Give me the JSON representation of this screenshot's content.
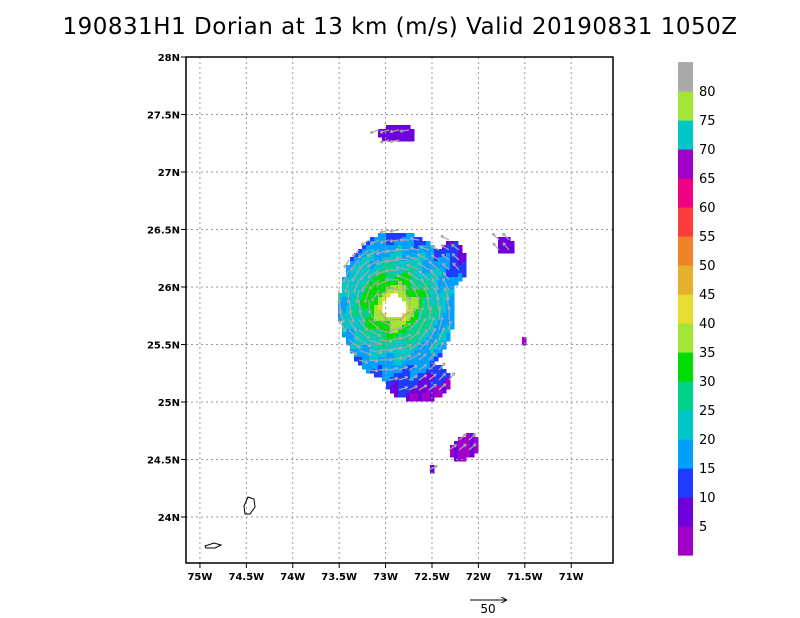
{
  "title": "190831H1 Dorian at 13 km (m/s) Valid 20190831  1050Z",
  "map": {
    "lon_range": [
      -75.15,
      -70.55
    ],
    "lat_range": [
      23.6,
      28.0
    ],
    "lon_ticks": [
      {
        "value": -75.0,
        "label": "75W"
      },
      {
        "value": -74.5,
        "label": "74.5W"
      },
      {
        "value": -74.0,
        "label": "74W"
      },
      {
        "value": -73.5,
        "label": "73.5W"
      },
      {
        "value": -73.0,
        "label": "73W"
      },
      {
        "value": -72.5,
        "label": "72.5W"
      },
      {
        "value": -72.0,
        "label": "72W"
      },
      {
        "value": -71.5,
        "label": "71.5W"
      },
      {
        "value": -71.0,
        "label": "71W"
      }
    ],
    "lat_ticks": [
      {
        "value": 28.0,
        "label": "28N"
      },
      {
        "value": 27.5,
        "label": "27.5N"
      },
      {
        "value": 27.0,
        "label": "27N"
      },
      {
        "value": 26.5,
        "label": "26.5N"
      },
      {
        "value": 26.0,
        "label": "26N"
      },
      {
        "value": 25.5,
        "label": "25.5N"
      },
      {
        "value": 25.0,
        "label": "25N"
      },
      {
        "value": 24.5,
        "label": "24.5N"
      },
      {
        "value": 24.0,
        "label": "24N"
      }
    ],
    "grid": "dotted",
    "storm_center": {
      "lon": -72.93,
      "lat": 25.85
    }
  },
  "colorbar": {
    "levels": [
      "5",
      "10",
      "15",
      "20",
      "25",
      "30",
      "35",
      "40",
      "45",
      "50",
      "55",
      "60",
      "65",
      "70",
      "75",
      "80"
    ],
    "colors": [
      "#a000c8",
      "#6e00dc",
      "#1e3cff",
      "#00a0ff",
      "#00c8c8",
      "#00d28c",
      "#00dc00",
      "#a0e632",
      "#e6dc32",
      "#e6af2d",
      "#f08228",
      "#fa3c3c",
      "#f00082",
      "#a000c8",
      "#00c8c8",
      "#a0e632",
      "#aaaaaa"
    ]
  },
  "reference_vector": {
    "label": "50"
  }
}
